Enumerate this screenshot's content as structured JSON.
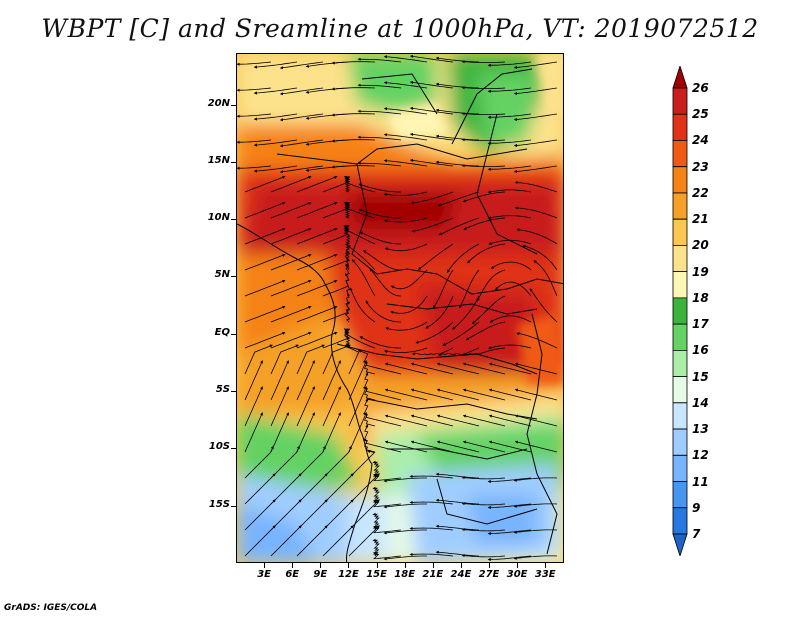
{
  "title": "WBPT [C] and Sreamline at 1000hPa, VT: 2019072512",
  "credit": "GrADS: IGES/COLA",
  "lat_ticks": [
    {
      "label": "20N",
      "value": 20
    },
    {
      "label": "15N",
      "value": 15
    },
    {
      "label": "10N",
      "value": 10
    },
    {
      "label": "5N",
      "value": 5
    },
    {
      "label": "EQ",
      "value": 0
    },
    {
      "label": "5S",
      "value": -5
    },
    {
      "label": "10S",
      "value": -10
    },
    {
      "label": "15S",
      "value": -15
    }
  ],
  "lon_ticks": [
    {
      "label": "3E",
      "value": 3
    },
    {
      "label": "6E",
      "value": 6
    },
    {
      "label": "9E",
      "value": 9
    },
    {
      "label": "12E",
      "value": 12
    },
    {
      "label": "15E",
      "value": 15
    },
    {
      "label": "18E",
      "value": 18
    },
    {
      "label": "21E",
      "value": 21
    },
    {
      "label": "24E",
      "value": 24
    },
    {
      "label": "27E",
      "value": 27
    },
    {
      "label": "30E",
      "value": 30
    },
    {
      "label": "33E",
      "value": 33
    }
  ],
  "map_extent": {
    "lon": [
      0,
      35
    ],
    "lat": [
      -20,
      24.5
    ]
  },
  "colorbar": {
    "labels": [
      "26",
      "25",
      "24",
      "23",
      "22",
      "21",
      "20",
      "19",
      "18",
      "17",
      "16",
      "15",
      "14",
      "13",
      "12",
      "11",
      "9",
      "7"
    ],
    "colors": [
      "#a00000",
      "#c81e1e",
      "#e03218",
      "#f05a14",
      "#f58214",
      "#f5a028",
      "#fac850",
      "#fde28c",
      "#fff5b4",
      "#3cb43c",
      "#64d264",
      "#aaeeaa",
      "#e6fae6",
      "#c8e6ff",
      "#a0cdff",
      "#78b4ff",
      "#4696f0",
      "#2878e1",
      "#1e64c8"
    ]
  }
}
